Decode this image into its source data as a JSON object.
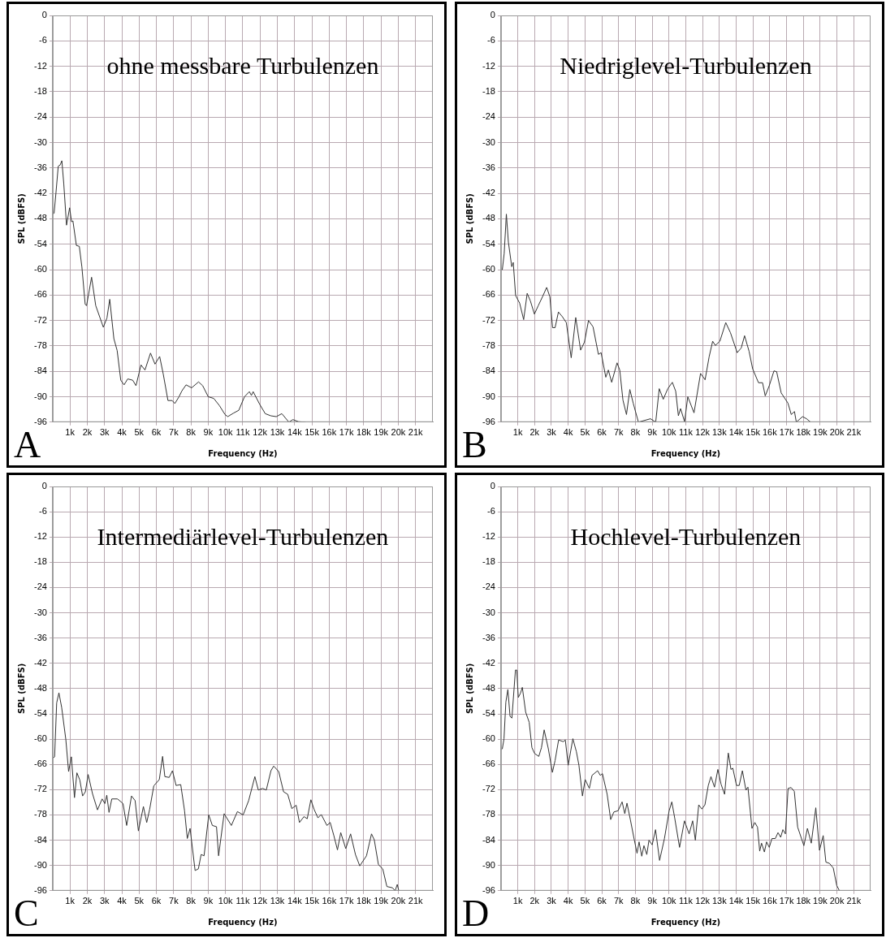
{
  "chart_data": [
    {
      "type": "line",
      "title": "ohne messbare Turbulenzen",
      "xlabel": "Frequency (Hz)",
      "ylabel": "SPL (dBFS)",
      "annotations": [
        "A"
      ],
      "grid": true,
      "xlim": [
        0,
        22000
      ],
      "ylim": [
        -96,
        0
      ],
      "xticks": [
        {
          "value": 1000,
          "label": "1k"
        },
        {
          "value": 2000,
          "label": "2k"
        },
        {
          "value": 3000,
          "label": "3k"
        },
        {
          "value": 4000,
          "label": "4k"
        },
        {
          "value": 5000,
          "label": "5k"
        },
        {
          "value": 6000,
          "label": "6k"
        },
        {
          "value": 7000,
          "label": "7k"
        },
        {
          "value": 8000,
          "label": "8k"
        },
        {
          "value": 9000,
          "label": "9k"
        },
        {
          "value": 10000,
          "label": "10k"
        },
        {
          "value": 11000,
          "label": "11k"
        },
        {
          "value": 12000,
          "label": "12k"
        },
        {
          "value": 13000,
          "label": "13k"
        },
        {
          "value": 14000,
          "label": "14k"
        },
        {
          "value": 15000,
          "label": "15k"
        },
        {
          "value": 16000,
          "label": "16k"
        },
        {
          "value": 17000,
          "label": "17k"
        },
        {
          "value": 18000,
          "label": "18k"
        },
        {
          "value": 19000,
          "label": "19k"
        },
        {
          "value": 20000,
          "label": "20k"
        },
        {
          "value": 21000,
          "label": "21k"
        }
      ],
      "yticks": [
        0,
        -6,
        -12,
        -18,
        -24,
        -30,
        -36,
        -42,
        -48,
        -54,
        -60,
        -66,
        -72,
        -78,
        -84,
        -90,
        -96
      ],
      "series": [
        {
          "color": "#333333",
          "x": [
            0,
            80,
            190,
            320,
            430,
            530,
            640,
            800,
            980,
            1090,
            1170,
            1370,
            1540,
            1690,
            1880,
            1960,
            2250,
            2490,
            2930,
            3140,
            3300,
            3540,
            3730,
            3940,
            4130,
            4340,
            4630,
            4820,
            5110,
            5340,
            5660,
            5920,
            6190,
            6400,
            6670,
            6910,
            7070,
            7310,
            7480,
            7720,
            8040,
            8440,
            8680,
            9000,
            9320,
            9650,
            9970,
            10130,
            10450,
            10770,
            11100,
            11380,
            11500,
            11600,
            11980,
            12300,
            12620,
            12940,
            13260,
            13670,
            13900,
            14230,
            14630
          ],
          "values": [
            -46.9,
            -46.7,
            -41.8,
            -35.6,
            -35.3,
            -34.3,
            -39.7,
            -49.5,
            -45.4,
            -48.7,
            -48.5,
            -54.3,
            -54.5,
            -59.4,
            -68.2,
            -68.5,
            -61.8,
            -68.5,
            -73.6,
            -71.4,
            -67,
            -76.3,
            -79.1,
            -86.1,
            -87.2,
            -85.8,
            -86.1,
            -87.4,
            -82.5,
            -83.7,
            -79.7,
            -82.3,
            -80.5,
            -84.7,
            -90.9,
            -90.9,
            -91.6,
            -90,
            -88.6,
            -87.2,
            -87.9,
            -86.5,
            -87.4,
            -90,
            -90.4,
            -92.1,
            -94.2,
            -94.7,
            -93.9,
            -93.2,
            -90,
            -88.8,
            -89.7,
            -88.8,
            -91.8,
            -94,
            -94.5,
            -94.7,
            -94,
            -96,
            -95.4,
            -95.9,
            -96
          ]
        }
      ]
    },
    {
      "type": "line",
      "title": "Niedriglevel-Turbulenzen",
      "xlabel": "Frequency (Hz)",
      "ylabel": "SPL (dBFS)",
      "annotations": [
        "B"
      ],
      "grid": true,
      "xlim": [
        0,
        22000
      ],
      "ylim": [
        -96,
        0
      ],
      "xticks": [
        {
          "value": 1000,
          "label": "1k"
        },
        {
          "value": 2000,
          "label": "2k"
        },
        {
          "value": 3000,
          "label": "3k"
        },
        {
          "value": 4000,
          "label": "4k"
        },
        {
          "value": 5000,
          "label": "5k"
        },
        {
          "value": 6000,
          "label": "6k"
        },
        {
          "value": 7000,
          "label": "7k"
        },
        {
          "value": 8000,
          "label": "8k"
        },
        {
          "value": 9000,
          "label": "9k"
        },
        {
          "value": 10000,
          "label": "10k"
        },
        {
          "value": 11000,
          "label": "11k"
        },
        {
          "value": 12000,
          "label": "12k"
        },
        {
          "value": 13000,
          "label": "13k"
        },
        {
          "value": 14000,
          "label": "14k"
        },
        {
          "value": 15000,
          "label": "15k"
        },
        {
          "value": 16000,
          "label": "16k"
        },
        {
          "value": 17000,
          "label": "17k"
        },
        {
          "value": 18000,
          "label": "18k"
        },
        {
          "value": 19000,
          "label": "19k"
        },
        {
          "value": 20000,
          "label": "20k"
        },
        {
          "value": 21000,
          "label": "21k"
        }
      ],
      "yticks": [
        0,
        -6,
        -12,
        -18,
        -24,
        -30,
        -36,
        -42,
        -48,
        -54,
        -60,
        -66,
        -72,
        -78,
        -84,
        -90,
        -96
      ],
      "series": [
        {
          "color": "#333333",
          "x": [
            0,
            80,
            190,
            320,
            440,
            640,
            730,
            870,
            1110,
            1350,
            1560,
            1750,
            1990,
            2220,
            2460,
            2720,
            2910,
            3070,
            3220,
            3420,
            3650,
            3890,
            4180,
            4450,
            4740,
            4970,
            5210,
            5480,
            5800,
            5960,
            6240,
            6390,
            6590,
            6910,
            7070,
            7260,
            7470,
            7670,
            7870,
            8180,
            8900,
            9210,
            9420,
            9660,
            9930,
            10200,
            10400,
            10560,
            10690,
            10930,
            11120,
            11490,
            11880,
            12150,
            12390,
            12600,
            12760,
            13030,
            13380,
            13660,
            14060,
            14300,
            14500,
            14770,
            14980,
            15330,
            15570,
            15730,
            15970,
            16250,
            16410,
            16680,
            17080,
            17280,
            17470,
            17580,
            17950,
            18190,
            18430
          ],
          "values": [
            -60,
            -60,
            -56.2,
            -46.9,
            -53.5,
            -59.3,
            -58.3,
            -66.1,
            -67.9,
            -71.8,
            -65.6,
            -67.4,
            -70.5,
            -68.5,
            -66.5,
            -64.2,
            -66.4,
            -73.7,
            -73.7,
            -70,
            -71.1,
            -72.5,
            -80.8,
            -71.3,
            -79,
            -77.1,
            -72,
            -73.5,
            -80,
            -79.6,
            -85.4,
            -83.7,
            -86.6,
            -82,
            -83.7,
            -90.8,
            -94.2,
            -88.3,
            -91.5,
            -96,
            -95.2,
            -96,
            -88.1,
            -90.6,
            -88.1,
            -86.6,
            -88.7,
            -94.5,
            -92.8,
            -95.9,
            -90,
            -93.8,
            -84.5,
            -86,
            -80.6,
            -76.9,
            -77.9,
            -76.9,
            -72.5,
            -74.9,
            -79.6,
            -78.5,
            -75.6,
            -79.3,
            -83.4,
            -86.7,
            -86.7,
            -89.8,
            -87.4,
            -83.9,
            -84.1,
            -89.1,
            -91.5,
            -94.2,
            -93.5,
            -96,
            -94.7,
            -95.2,
            -96
          ]
        }
      ]
    },
    {
      "type": "line",
      "title": "Intermediärlevel-Turbulenzen",
      "xlabel": "Frequency (Hz)",
      "ylabel": "SPL (dBFS)",
      "annotations": [
        "C"
      ],
      "grid": true,
      "xlim": [
        0,
        22000
      ],
      "ylim": [
        -96,
        0
      ],
      "xticks": [
        {
          "value": 1000,
          "label": "1k"
        },
        {
          "value": 2000,
          "label": "2k"
        },
        {
          "value": 3000,
          "label": "3k"
        },
        {
          "value": 4000,
          "label": "4k"
        },
        {
          "value": 5000,
          "label": "5k"
        },
        {
          "value": 6000,
          "label": "6k"
        },
        {
          "value": 7000,
          "label": "7k"
        },
        {
          "value": 8000,
          "label": "8k"
        },
        {
          "value": 9000,
          "label": "9k"
        },
        {
          "value": 10000,
          "label": "10k"
        },
        {
          "value": 11000,
          "label": "11k"
        },
        {
          "value": 12000,
          "label": "12k"
        },
        {
          "value": 13000,
          "label": "13k"
        },
        {
          "value": 14000,
          "label": "14k"
        },
        {
          "value": 15000,
          "label": "15k"
        },
        {
          "value": 16000,
          "label": "16k"
        },
        {
          "value": 17000,
          "label": "17k"
        },
        {
          "value": 18000,
          "label": "18k"
        },
        {
          "value": 19000,
          "label": "19k"
        },
        {
          "value": 20000,
          "label": "20k"
        },
        {
          "value": 21000,
          "label": "21k"
        }
      ],
      "yticks": [
        0,
        -6,
        -12,
        -18,
        -24,
        -30,
        -36,
        -42,
        -48,
        -54,
        -60,
        -66,
        -72,
        -78,
        -84,
        -90,
        -96
      ],
      "series": [
        {
          "color": "#333333",
          "x": [
            0,
            110,
            230,
            360,
            520,
            760,
            920,
            1080,
            1260,
            1400,
            1570,
            1730,
            1890,
            2050,
            2300,
            2590,
            2860,
            3020,
            3130,
            3260,
            3420,
            3750,
            4070,
            4280,
            4560,
            4770,
            4960,
            5250,
            5440,
            5610,
            5850,
            6170,
            6360,
            6490,
            6740,
            6930,
            7140,
            7410,
            7630,
            7790,
            7950,
            8240,
            8430,
            8590,
            8760,
            9030,
            9240,
            9480,
            9600,
            9920,
            10340,
            10690,
            11020,
            11340,
            11700,
            11900,
            12150,
            12360,
            12630,
            12790,
            13080,
            13360,
            13600,
            13840,
            14090,
            14280,
            14540,
            14730,
            14940,
            15130,
            15350,
            15540,
            15870,
            16060,
            16270,
            16480,
            16670,
            16960,
            17240,
            17520,
            17770,
            18160,
            18450,
            18610,
            18850,
            19100,
            19340,
            19660,
            19820,
            19940,
            20030
          ],
          "values": [
            -64.6,
            -64.2,
            -51.4,
            -49,
            -52.5,
            -60.1,
            -67.7,
            -64.2,
            -73.9,
            -68,
            -69.7,
            -73.5,
            -72.5,
            -68.4,
            -72.9,
            -76.8,
            -74.2,
            -75.3,
            -73.3,
            -77.4,
            -74.2,
            -74.2,
            -75.3,
            -80.5,
            -73.5,
            -74.6,
            -81.8,
            -76,
            -79.8,
            -76.7,
            -71.1,
            -69.6,
            -64.1,
            -68.9,
            -69.1,
            -67.5,
            -71,
            -70.8,
            -77,
            -83.6,
            -81.2,
            -91.2,
            -90.8,
            -87.4,
            -87.7,
            -78,
            -80.5,
            -80.8,
            -87.7,
            -77.7,
            -80.5,
            -77.2,
            -78,
            -74.6,
            -68.9,
            -72.1,
            -71.7,
            -72.1,
            -67.5,
            -66.4,
            -67.7,
            -72.5,
            -73.1,
            -76.5,
            -75.7,
            -79.8,
            -78.4,
            -78.9,
            -74.4,
            -76.7,
            -78.7,
            -77.9,
            -80.5,
            -79.8,
            -82.9,
            -86.3,
            -82.2,
            -86,
            -82.5,
            -87.4,
            -90.1,
            -87.7,
            -82.5,
            -83.9,
            -89.8,
            -90.8,
            -95,
            -95.3,
            -96,
            -94.5,
            -96
          ]
        }
      ]
    },
    {
      "type": "line",
      "title": "Hochlevel-Turbulenzen",
      "xlabel": "Frequency (Hz)",
      "ylabel": "SPL (dBFS)",
      "annotations": [
        "D"
      ],
      "grid": true,
      "xlim": [
        0,
        22000
      ],
      "ylim": [
        -96,
        0
      ],
      "xticks": [
        {
          "value": 1000,
          "label": "1k"
        },
        {
          "value": 2000,
          "label": "2k"
        },
        {
          "value": 3000,
          "label": "3k"
        },
        {
          "value": 4000,
          "label": "4k"
        },
        {
          "value": 5000,
          "label": "5k"
        },
        {
          "value": 6000,
          "label": "6k"
        },
        {
          "value": 7000,
          "label": "7k"
        },
        {
          "value": 8000,
          "label": "8k"
        },
        {
          "value": 9000,
          "label": "9k"
        },
        {
          "value": 10000,
          "label": "10k"
        },
        {
          "value": 11000,
          "label": "11k"
        },
        {
          "value": 12000,
          "label": "12k"
        },
        {
          "value": 13000,
          "label": "13k"
        },
        {
          "value": 14000,
          "label": "14k"
        },
        {
          "value": 15000,
          "label": "15k"
        },
        {
          "value": 16000,
          "label": "16k"
        },
        {
          "value": 17000,
          "label": "17k"
        },
        {
          "value": 18000,
          "label": "18k"
        },
        {
          "value": 19000,
          "label": "19k"
        },
        {
          "value": 20000,
          "label": "20k"
        },
        {
          "value": 21000,
          "label": "21k"
        }
      ],
      "yticks": [
        0,
        -6,
        -12,
        -18,
        -24,
        -30,
        -36,
        -42,
        -48,
        -54,
        -60,
        -66,
        -72,
        -78,
        -84,
        -90,
        -96
      ],
      "series": [
        {
          "color": "#333333",
          "x": [
            0,
            80,
            180,
            290,
            410,
            540,
            650,
            860,
            940,
            1030,
            1160,
            1270,
            1470,
            1680,
            1840,
            2000,
            2250,
            2410,
            2570,
            2820,
            3060,
            3220,
            3430,
            3710,
            3830,
            4000,
            4280,
            4490,
            4640,
            4850,
            5010,
            5260,
            5420,
            5750,
            5910,
            6040,
            6320,
            6530,
            6720,
            6970,
            7210,
            7370,
            7500,
            7700,
            7940,
            8100,
            8220,
            8380,
            8510,
            8680,
            8810,
            9000,
            9200,
            9440,
            9730,
            10010,
            10170,
            10340,
            10630,
            10920,
            11200,
            11410,
            11570,
            11770,
            11960,
            12140,
            12340,
            12500,
            12710,
            12910,
            13100,
            13310,
            13530,
            13690,
            13800,
            14020,
            14180,
            14370,
            14580,
            14700,
            14940,
            15110,
            15270,
            15400,
            15510,
            15680,
            15810,
            15970,
            16130,
            16330,
            16490,
            16650,
            16780,
            16930,
            17090,
            17270,
            17460,
            17660,
            18030,
            18240,
            18470,
            18740,
            18960,
            19180,
            19340,
            19550,
            19780,
            19990,
            20150
          ],
          "values": [
            -62.5,
            -62.3,
            -59.9,
            -51.2,
            -48.2,
            -54.6,
            -55,
            -43.6,
            -43.6,
            -50.1,
            -49.1,
            -47.7,
            -53.6,
            -56,
            -62,
            -63.4,
            -64.1,
            -62,
            -57.8,
            -62.3,
            -67.9,
            -65.1,
            -60.2,
            -60.6,
            -60.2,
            -66.2,
            -59.9,
            -63,
            -66.2,
            -73.5,
            -69.6,
            -71.7,
            -68.6,
            -67.5,
            -68.6,
            -68.2,
            -73.1,
            -79.1,
            -77.3,
            -77,
            -74.9,
            -77.7,
            -75.2,
            -79.1,
            -84,
            -87.1,
            -84.4,
            -87.8,
            -85.3,
            -87.4,
            -84,
            -85.1,
            -81.5,
            -88.8,
            -83.6,
            -77,
            -74.9,
            -78.7,
            -85.7,
            -79.4,
            -82.5,
            -79.4,
            -84,
            -75.6,
            -76.6,
            -75.6,
            -71,
            -68.9,
            -71.4,
            -67.2,
            -70.7,
            -73.1,
            -63.3,
            -67.2,
            -66.9,
            -71,
            -71,
            -67.5,
            -72.1,
            -71.4,
            -81.2,
            -79.8,
            -80.9,
            -86.6,
            -84.7,
            -86.8,
            -84.4,
            -85.7,
            -83.6,
            -83.6,
            -82.2,
            -83.3,
            -81.5,
            -82.5,
            -71.7,
            -71.5,
            -72.4,
            -80.9,
            -85.3,
            -81.2,
            -84.7,
            -76.3,
            -86.4,
            -82.9,
            -89.2,
            -89.5,
            -90.6,
            -94.8,
            -96
          ]
        }
      ]
    }
  ]
}
